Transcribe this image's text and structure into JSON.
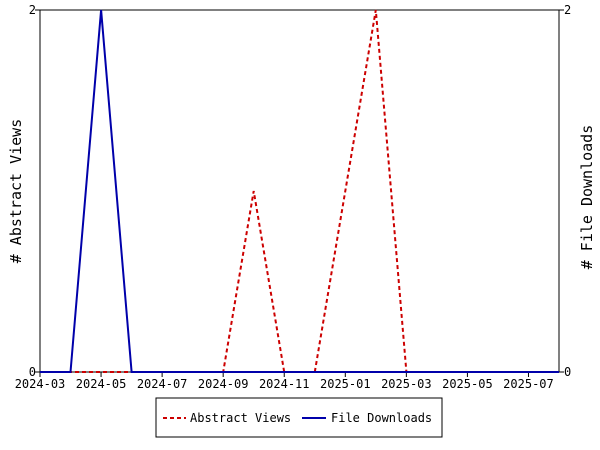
{
  "chart_data": {
    "type": "line",
    "x_type": "month",
    "x": [
      "2024-03",
      "2024-04",
      "2024-05",
      "2024-06",
      "2024-07",
      "2024-08",
      "2024-09",
      "2024-10",
      "2024-11",
      "2024-12",
      "2025-01",
      "2025-02",
      "2025-03",
      "2025-04",
      "2025-05",
      "2025-06",
      "2025-07",
      "2025-08"
    ],
    "xticks": [
      "2024-03",
      "2024-05",
      "2024-07",
      "2024-09",
      "2024-11",
      "2025-01",
      "2025-03",
      "2025-05",
      "2025-07"
    ],
    "xlim": [
      "2024-03",
      "2025-08"
    ],
    "ylabel_left": "# Abstract Views",
    "ylabel_right": "# File Downloads",
    "ylim_left": [
      0,
      2
    ],
    "ylim_right": [
      0,
      2
    ],
    "yticks_left": [
      0,
      2
    ],
    "yticks_right": [
      0,
      2
    ],
    "grid": false,
    "legend_position": "bottom-center",
    "series": [
      {
        "name": "Abstract Views",
        "axis": "left",
        "color": "#cc0000",
        "style": "dashed",
        "values": [
          0,
          0,
          0,
          0,
          0,
          0,
          0,
          1,
          0,
          0,
          1,
          2,
          0,
          0,
          0,
          0,
          0,
          0
        ]
      },
      {
        "name": "File Downloads",
        "axis": "right",
        "color": "#0000aa",
        "style": "solid",
        "values": [
          0,
          0,
          2,
          0,
          0,
          0,
          0,
          0,
          0,
          0,
          0,
          0,
          0,
          0,
          0,
          0,
          0,
          0
        ]
      }
    ]
  }
}
